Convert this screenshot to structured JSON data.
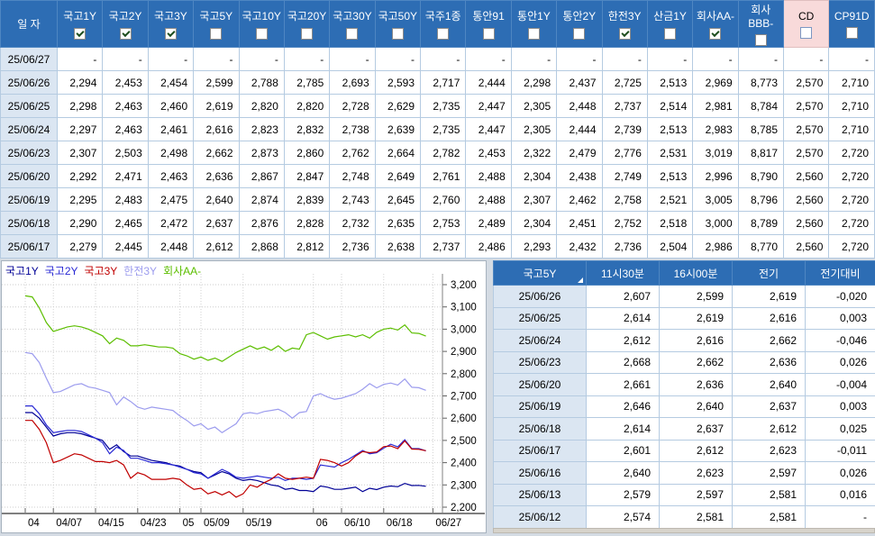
{
  "colors": {
    "header_bg": "#2D6DB4",
    "cd_header_bg": "#F8DADA",
    "date_cell_bg": "#DBE6F2",
    "grid_line": "#B5CBE1",
    "positive_change": "#D40000",
    "negative_change": "#0000D4"
  },
  "top_table": {
    "date_header": "일  자",
    "columns": [
      {
        "label": "국고1Y",
        "checked": true,
        "highlight": false
      },
      {
        "label": "국고2Y",
        "checked": true,
        "highlight": false
      },
      {
        "label": "국고3Y",
        "checked": true,
        "highlight": false
      },
      {
        "label": "국고5Y",
        "checked": false,
        "highlight": false
      },
      {
        "label": "국고10Y",
        "checked": false,
        "highlight": false
      },
      {
        "label": "국고20Y",
        "checked": false,
        "highlight": false
      },
      {
        "label": "국고30Y",
        "checked": false,
        "highlight": false
      },
      {
        "label": "국고50Y",
        "checked": false,
        "highlight": false
      },
      {
        "label": "국주1종",
        "checked": false,
        "highlight": false
      },
      {
        "label": "통안91",
        "checked": false,
        "highlight": false
      },
      {
        "label": "통안1Y",
        "checked": false,
        "highlight": false
      },
      {
        "label": "통안2Y",
        "checked": false,
        "highlight": false
      },
      {
        "label": "한전3Y",
        "checked": true,
        "highlight": false
      },
      {
        "label": "산금1Y",
        "checked": false,
        "highlight": false
      },
      {
        "label": "회사AA-",
        "checked": true,
        "highlight": false
      },
      {
        "label": "회사BBB-",
        "checked": false,
        "highlight": false
      },
      {
        "label": "CD",
        "checked": false,
        "highlight": true
      },
      {
        "label": "CP91D",
        "checked": false,
        "highlight": false
      }
    ],
    "rows": [
      {
        "date": "25/06/27",
        "values": [
          "-",
          "-",
          "-",
          "-",
          "-",
          "-",
          "-",
          "-",
          "-",
          "-",
          "-",
          "-",
          "-",
          "-",
          "-",
          "-",
          "-",
          "-"
        ]
      },
      {
        "date": "25/06/26",
        "values": [
          "2,294",
          "2,453",
          "2,454",
          "2,599",
          "2,788",
          "2,785",
          "2,693",
          "2,593",
          "2,717",
          "2,444",
          "2,298",
          "2,437",
          "2,725",
          "2,513",
          "2,969",
          "8,773",
          "2,570",
          "2,710"
        ]
      },
      {
        "date": "25/06/25",
        "values": [
          "2,298",
          "2,463",
          "2,460",
          "2,619",
          "2,820",
          "2,820",
          "2,728",
          "2,629",
          "2,735",
          "2,447",
          "2,305",
          "2,448",
          "2,737",
          "2,514",
          "2,981",
          "8,784",
          "2,570",
          "2,710"
        ]
      },
      {
        "date": "25/06/24",
        "values": [
          "2,297",
          "2,463",
          "2,461",
          "2,616",
          "2,823",
          "2,832",
          "2,738",
          "2,639",
          "2,735",
          "2,447",
          "2,305",
          "2,444",
          "2,739",
          "2,513",
          "2,983",
          "8,785",
          "2,570",
          "2,710"
        ]
      },
      {
        "date": "25/06/23",
        "values": [
          "2,307",
          "2,503",
          "2,498",
          "2,662",
          "2,873",
          "2,860",
          "2,762",
          "2,664",
          "2,782",
          "2,453",
          "2,322",
          "2,479",
          "2,776",
          "2,531",
          "3,019",
          "8,817",
          "2,570",
          "2,720"
        ]
      },
      {
        "date": "25/06/20",
        "values": [
          "2,292",
          "2,471",
          "2,463",
          "2,636",
          "2,867",
          "2,847",
          "2,748",
          "2,649",
          "2,761",
          "2,488",
          "2,304",
          "2,438",
          "2,749",
          "2,513",
          "2,996",
          "8,790",
          "2,560",
          "2,720"
        ]
      },
      {
        "date": "25/06/19",
        "values": [
          "2,295",
          "2,483",
          "2,475",
          "2,640",
          "2,874",
          "2,839",
          "2,743",
          "2,645",
          "2,760",
          "2,488",
          "2,307",
          "2,462",
          "2,758",
          "2,521",
          "3,005",
          "8,796",
          "2,560",
          "2,720"
        ]
      },
      {
        "date": "25/06/18",
        "values": [
          "2,290",
          "2,465",
          "2,472",
          "2,637",
          "2,876",
          "2,828",
          "2,732",
          "2,635",
          "2,753",
          "2,489",
          "2,304",
          "2,451",
          "2,752",
          "2,518",
          "3,000",
          "8,789",
          "2,560",
          "2,720"
        ]
      },
      {
        "date": "25/06/17",
        "values": [
          "2,279",
          "2,445",
          "2,448",
          "2,612",
          "2,868",
          "2,812",
          "2,736",
          "2,638",
          "2,737",
          "2,486",
          "2,293",
          "2,432",
          "2,736",
          "2,504",
          "2,986",
          "8,770",
          "2,560",
          "2,720"
        ]
      }
    ]
  },
  "chart_data": {
    "type": "line",
    "title": "",
    "ylim": [
      2.2,
      3.2
    ],
    "y_ticks": [
      "3,200",
      "3,100",
      "3,000",
      "2,900",
      "2,800",
      "2,700",
      "2,600",
      "2,500",
      "2,400",
      "2,300",
      "2,200"
    ],
    "x_ticks": [
      {
        "label": "04",
        "day": 0
      },
      {
        "label": "04/07",
        "day": 4
      },
      {
        "label": "04/15",
        "day": 10
      },
      {
        "label": "04/23",
        "day": 16
      },
      {
        "label": "05",
        "day": 22
      },
      {
        "label": "05/09",
        "day": 25
      },
      {
        "label": "05/19",
        "day": 31
      },
      {
        "label": "06",
        "day": 41
      },
      {
        "label": "06/10",
        "day": 45
      },
      {
        "label": "06/18",
        "day": 51
      },
      {
        "label": "06/27",
        "day": 58
      }
    ],
    "total_days": 58,
    "legend_position": "top-left",
    "grid": true,
    "series": [
      {
        "name": "국고1Y",
        "color": "#000096",
        "values": [
          2.625,
          2.625,
          2.6,
          2.56,
          2.52,
          2.53,
          2.535,
          2.535,
          2.53,
          2.52,
          2.51,
          2.5,
          2.46,
          2.48,
          2.45,
          2.43,
          2.43,
          2.42,
          2.41,
          2.405,
          2.4,
          2.39,
          2.385,
          2.37,
          2.36,
          2.355,
          2.33,
          2.345,
          2.36,
          2.35,
          2.33,
          2.32,
          2.325,
          2.32,
          2.31,
          2.3,
          2.295,
          2.28,
          2.285,
          2.275,
          2.275,
          2.27,
          2.295,
          2.29,
          2.28,
          2.28,
          2.285,
          2.29,
          2.27,
          2.285,
          2.279,
          2.29,
          2.295,
          2.292,
          2.307,
          2.297,
          2.298,
          2.294
        ]
      },
      {
        "name": "국고2Y",
        "color": "#2A2AD4",
        "values": [
          2.655,
          2.655,
          2.62,
          2.57,
          2.535,
          2.54,
          2.545,
          2.545,
          2.54,
          2.525,
          2.51,
          2.49,
          2.44,
          2.47,
          2.455,
          2.42,
          2.42,
          2.41,
          2.4,
          2.4,
          2.395,
          2.39,
          2.38,
          2.37,
          2.355,
          2.35,
          2.33,
          2.35,
          2.37,
          2.355,
          2.335,
          2.33,
          2.335,
          2.34,
          2.335,
          2.33,
          2.335,
          2.32,
          2.33,
          2.33,
          2.325,
          2.33,
          2.39,
          2.385,
          2.38,
          2.4,
          2.415,
          2.435,
          2.455,
          2.44,
          2.445,
          2.465,
          2.483,
          2.471,
          2.503,
          2.463,
          2.463,
          2.453
        ]
      },
      {
        "name": "국고3Y",
        "color": "#C00000",
        "values": [
          2.59,
          2.59,
          2.55,
          2.49,
          2.4,
          2.41,
          2.425,
          2.44,
          2.435,
          2.42,
          2.405,
          2.405,
          2.4,
          2.41,
          2.39,
          2.33,
          2.355,
          2.345,
          2.325,
          2.325,
          2.325,
          2.33,
          2.325,
          2.3,
          2.28,
          2.285,
          2.26,
          2.27,
          2.255,
          2.27,
          2.245,
          2.26,
          2.3,
          2.29,
          2.31,
          2.325,
          2.35,
          2.33,
          2.325,
          2.33,
          2.335,
          2.33,
          2.415,
          2.41,
          2.4,
          2.385,
          2.4,
          2.43,
          2.45,
          2.445,
          2.448,
          2.472,
          2.475,
          2.463,
          2.498,
          2.461,
          2.46,
          2.454
        ]
      },
      {
        "name": "한전3Y",
        "color": "#9C9CEE",
        "values": [
          2.895,
          2.89,
          2.85,
          2.78,
          2.715,
          2.72,
          2.735,
          2.75,
          2.755,
          2.74,
          2.735,
          2.725,
          2.715,
          2.66,
          2.695,
          2.675,
          2.65,
          2.64,
          2.65,
          2.645,
          2.64,
          2.635,
          2.61,
          2.59,
          2.565,
          2.575,
          2.55,
          2.56,
          2.535,
          2.555,
          2.575,
          2.62,
          2.625,
          2.62,
          2.63,
          2.635,
          2.64,
          2.625,
          2.6,
          2.625,
          2.63,
          2.7,
          2.71,
          2.695,
          2.685,
          2.69,
          2.7,
          2.71,
          2.73,
          2.755,
          2.736,
          2.752,
          2.758,
          2.749,
          2.776,
          2.739,
          2.737,
          2.725
        ]
      },
      {
        "name": "회사AA-",
        "color": "#5CBE00",
        "values": [
          3.15,
          3.145,
          3.095,
          3.03,
          2.99,
          3.0,
          3.01,
          3.015,
          3.01,
          3.0,
          2.985,
          2.97,
          2.935,
          2.96,
          2.95,
          2.925,
          2.925,
          2.93,
          2.925,
          2.92,
          2.92,
          2.915,
          2.89,
          2.88,
          2.865,
          2.875,
          2.86,
          2.87,
          2.855,
          2.875,
          2.895,
          2.91,
          2.925,
          2.91,
          2.92,
          2.905,
          2.925,
          2.9,
          2.915,
          2.91,
          2.975,
          2.985,
          2.97,
          2.955,
          2.965,
          2.97,
          2.975,
          2.965,
          2.975,
          2.96,
          2.986,
          3.0,
          3.005,
          2.996,
          3.019,
          2.983,
          2.981,
          2.969
        ]
      }
    ]
  },
  "right_table": {
    "headers": [
      "국고5Y",
      "11시30분",
      "16시00분",
      "전기",
      "전기대비"
    ],
    "rows": [
      {
        "date": "25/06/26",
        "t1130": "2,607",
        "t1600": "2,599",
        "prev": "2,619",
        "change": "-0,020",
        "change_type": "neg"
      },
      {
        "date": "25/06/25",
        "t1130": "2,614",
        "t1600": "2,619",
        "prev": "2,616",
        "change": "0,003",
        "change_type": "pos"
      },
      {
        "date": "25/06/24",
        "t1130": "2,612",
        "t1600": "2,616",
        "prev": "2,662",
        "change": "-0,046",
        "change_type": "neg"
      },
      {
        "date": "25/06/23",
        "t1130": "2,668",
        "t1600": "2,662",
        "prev": "2,636",
        "change": "0,026",
        "change_type": "pos"
      },
      {
        "date": "25/06/20",
        "t1130": "2,661",
        "t1600": "2,636",
        "prev": "2,640",
        "change": "-0,004",
        "change_type": "neg"
      },
      {
        "date": "25/06/19",
        "t1130": "2,646",
        "t1600": "2,640",
        "prev": "2,637",
        "change": "0,003",
        "change_type": "pos"
      },
      {
        "date": "25/06/18",
        "t1130": "2,614",
        "t1600": "2,637",
        "prev": "2,612",
        "change": "0,025",
        "change_type": "pos"
      },
      {
        "date": "25/06/17",
        "t1130": "2,601",
        "t1600": "2,612",
        "prev": "2,623",
        "change": "-0,011",
        "change_type": "neg"
      },
      {
        "date": "25/06/16",
        "t1130": "2,640",
        "t1600": "2,623",
        "prev": "2,597",
        "change": "0,026",
        "change_type": "pos"
      },
      {
        "date": "25/06/13",
        "t1130": "2,579",
        "t1600": "2,597",
        "prev": "2,581",
        "change": "0,016",
        "change_type": "pos"
      },
      {
        "date": "25/06/12",
        "t1130": "2,574",
        "t1600": "2,581",
        "prev": "2,581",
        "change": "-",
        "change_type": "flat"
      }
    ]
  }
}
